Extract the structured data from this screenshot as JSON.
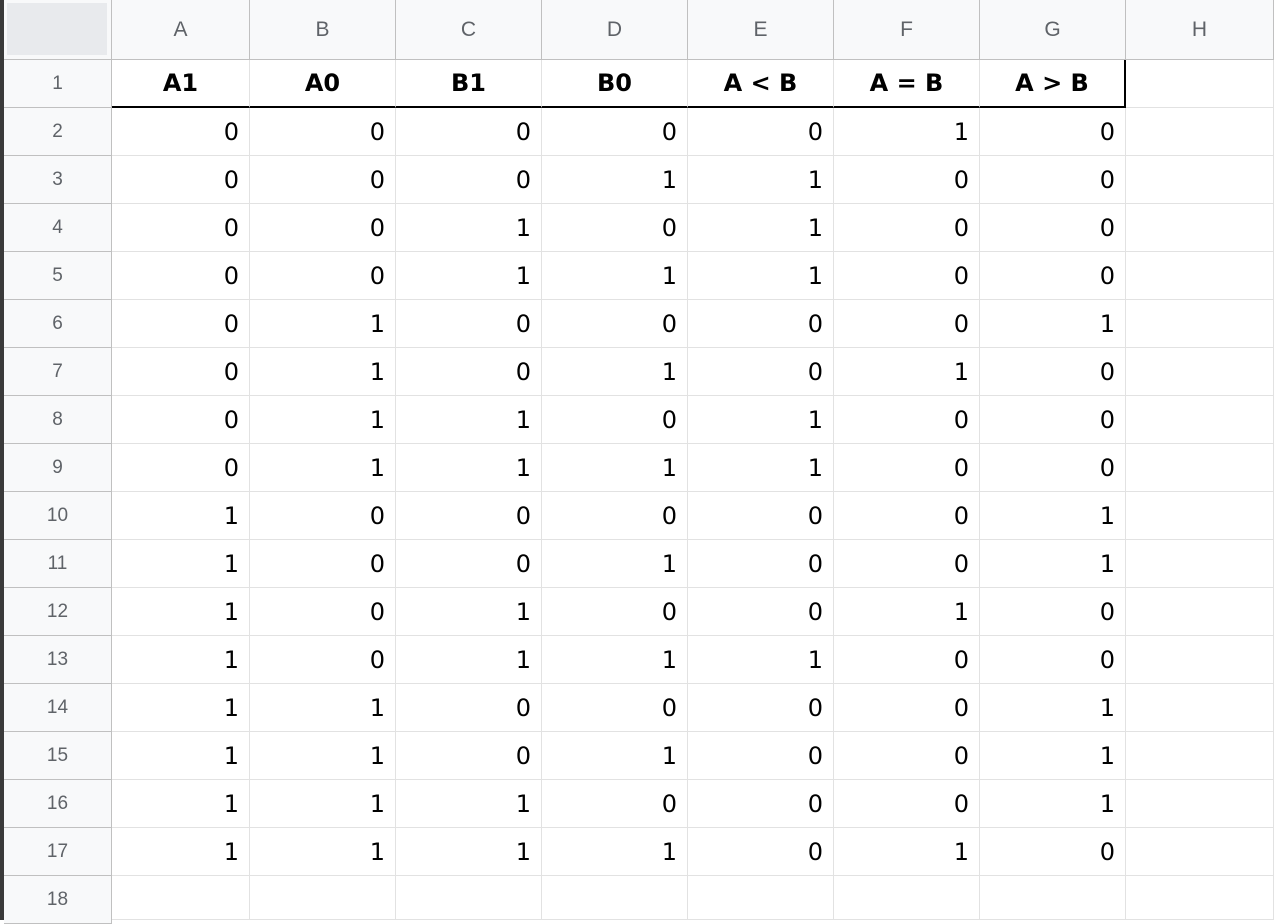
{
  "columns": [
    "A",
    "B",
    "C",
    "D",
    "E",
    "F",
    "G",
    "H"
  ],
  "rows": [
    "1",
    "2",
    "3",
    "4",
    "5",
    "6",
    "7",
    "8",
    "9",
    "10",
    "11",
    "12",
    "13",
    "14",
    "15",
    "16",
    "17",
    "18"
  ],
  "header_cells": [
    "A1",
    "A0",
    "B1",
    "B0",
    "A < B",
    "A = B",
    "A > B"
  ],
  "data": [
    [
      "0",
      "0",
      "0",
      "0",
      "0",
      "1",
      "0"
    ],
    [
      "0",
      "0",
      "0",
      "1",
      "1",
      "0",
      "0"
    ],
    [
      "0",
      "0",
      "1",
      "0",
      "1",
      "0",
      "0"
    ],
    [
      "0",
      "0",
      "1",
      "1",
      "1",
      "0",
      "0"
    ],
    [
      "0",
      "1",
      "0",
      "0",
      "0",
      "0",
      "1"
    ],
    [
      "0",
      "1",
      "0",
      "1",
      "0",
      "1",
      "0"
    ],
    [
      "0",
      "1",
      "1",
      "0",
      "1",
      "0",
      "0"
    ],
    [
      "0",
      "1",
      "1",
      "1",
      "1",
      "0",
      "0"
    ],
    [
      "1",
      "0",
      "0",
      "0",
      "0",
      "0",
      "1"
    ],
    [
      "1",
      "0",
      "0",
      "1",
      "0",
      "0",
      "1"
    ],
    [
      "1",
      "0",
      "1",
      "0",
      "0",
      "1",
      "0"
    ],
    [
      "1",
      "0",
      "1",
      "1",
      "1",
      "0",
      "0"
    ],
    [
      "1",
      "1",
      "0",
      "0",
      "0",
      "0",
      "1"
    ],
    [
      "1",
      "1",
      "0",
      "1",
      "0",
      "0",
      "1"
    ],
    [
      "1",
      "1",
      "1",
      "0",
      "0",
      "0",
      "1"
    ],
    [
      "1",
      "1",
      "1",
      "1",
      "0",
      "1",
      "0"
    ]
  ]
}
